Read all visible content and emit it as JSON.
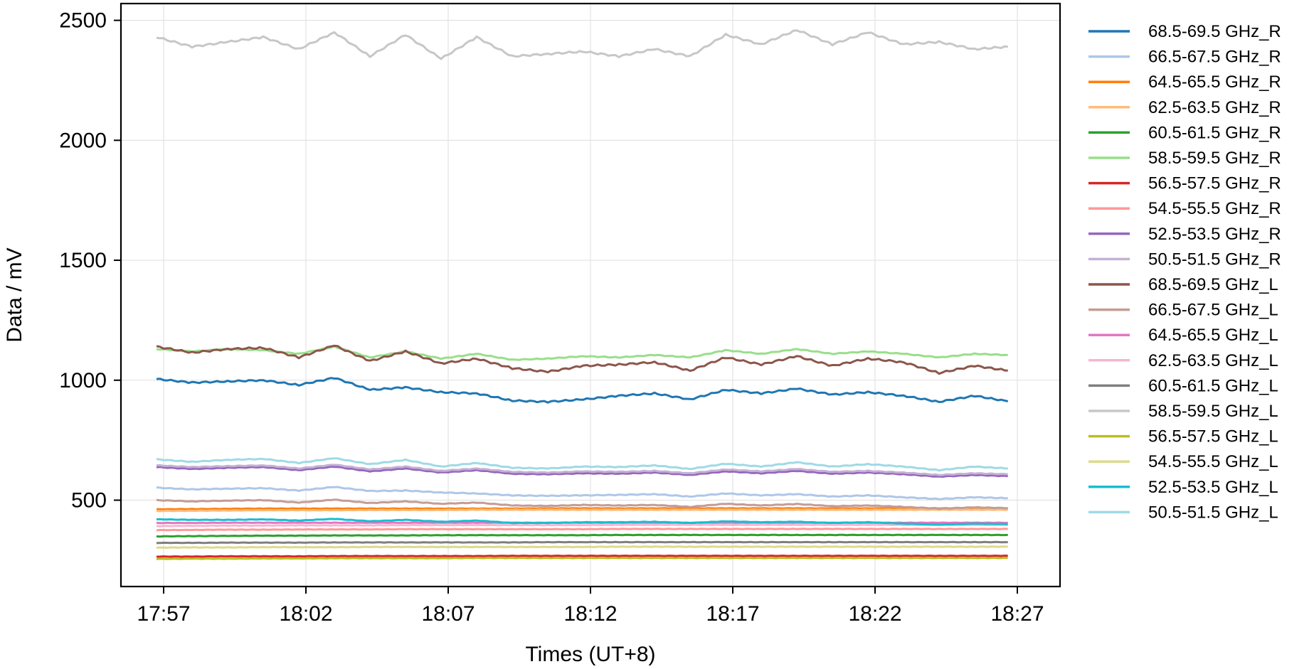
{
  "chart_data": {
    "type": "line",
    "title": "",
    "xlabel": "Times (UT+8)",
    "ylabel": "Data / mV",
    "xlim": [
      "17:55:30",
      "18:28:30"
    ],
    "ylim": [
      140,
      2570
    ],
    "x_ticks": [
      "17:57",
      "18:02",
      "18:07",
      "18:12",
      "18:17",
      "18:22",
      "18:27"
    ],
    "y_ticks": [
      500,
      1000,
      1500,
      2000,
      2500
    ],
    "grid": true,
    "legend_position": "outside-right",
    "x": [
      "17:56:45",
      "17:58:00",
      "17:59:15",
      "18:00:30",
      "18:01:45",
      "18:03:00",
      "18:04:15",
      "18:05:30",
      "18:06:45",
      "18:08:00",
      "18:09:15",
      "18:10:30",
      "18:11:45",
      "18:13:00",
      "18:14:15",
      "18:15:30",
      "18:16:45",
      "18:18:00",
      "18:19:15",
      "18:20:30",
      "18:21:45",
      "18:23:00",
      "18:24:15",
      "18:25:30",
      "18:26:40"
    ],
    "series": [
      {
        "name": "68.5-69.5 GHz_R",
        "color": "#1f77b4",
        "values": [
          1005,
          990,
          995,
          1000,
          980,
          1010,
          960,
          970,
          950,
          945,
          915,
          910,
          920,
          935,
          945,
          920,
          960,
          945,
          965,
          940,
          950,
          935,
          910,
          935,
          912
        ]
      },
      {
        "name": "66.5-67.5 GHz_R",
        "color": "#aec7e8",
        "values": [
          552,
          545,
          548,
          550,
          540,
          555,
          538,
          540,
          532,
          528,
          520,
          518,
          520,
          522,
          525,
          515,
          528,
          520,
          525,
          515,
          520,
          512,
          505,
          512,
          508
        ]
      },
      {
        "name": "64.5-65.5 GHz_R",
        "color": "#ff7f0e",
        "values": [
          462,
          463,
          464,
          465,
          465,
          465,
          465,
          465,
          465,
          465,
          465,
          466,
          466,
          466,
          466,
          466,
          466,
          466,
          466,
          466,
          466,
          466,
          466,
          466,
          465
        ]
      },
      {
        "name": "62.5-63.5 GHz_R",
        "color": "#ffbb78",
        "values": [
          455,
          456,
          457,
          458,
          458,
          458,
          459,
          459,
          459,
          460,
          460,
          460,
          460,
          460,
          460,
          460,
          460,
          460,
          460,
          460,
          460,
          460,
          460,
          460,
          460
        ]
      },
      {
        "name": "60.5-61.5 GHz_R",
        "color": "#2ca02c",
        "values": [
          349,
          350,
          351,
          352,
          352,
          353,
          353,
          353,
          354,
          354,
          354,
          354,
          354,
          355,
          355,
          355,
          355,
          355,
          355,
          355,
          355,
          355,
          355,
          355,
          355
        ]
      },
      {
        "name": "58.5-59.5 GHz_R",
        "color": "#98df8a",
        "values": [
          1130,
          1120,
          1130,
          1125,
          1110,
          1140,
          1095,
          1120,
          1090,
          1110,
          1085,
          1090,
          1100,
          1095,
          1105,
          1095,
          1125,
          1110,
          1130,
          1110,
          1120,
          1110,
          1095,
          1110,
          1105
        ]
      },
      {
        "name": "56.5-57.5 GHz_R",
        "color": "#d62728",
        "values": [
          265,
          265,
          266,
          266,
          266,
          267,
          267,
          267,
          267,
          267,
          268,
          268,
          268,
          268,
          268,
          268,
          268,
          268,
          268,
          268,
          268,
          268,
          268,
          268,
          268
        ]
      },
      {
        "name": "54.5-55.5 GHz_R",
        "color": "#ff9896",
        "values": [
          375,
          376,
          377,
          377,
          378,
          378,
          378,
          379,
          379,
          379,
          379,
          379,
          379,
          380,
          380,
          380,
          380,
          380,
          380,
          380,
          380,
          380,
          380,
          380,
          380
        ]
      },
      {
        "name": "52.5-53.5 GHz_R",
        "color": "#9467bd",
        "values": [
          638,
          630,
          635,
          638,
          625,
          640,
          620,
          632,
          615,
          625,
          610,
          608,
          612,
          610,
          615,
          605,
          620,
          612,
          622,
          610,
          615,
          608,
          598,
          605,
          600
        ]
      },
      {
        "name": "50.5-51.5 GHz_R",
        "color": "#c5b0d5",
        "values": [
          645,
          638,
          642,
          645,
          632,
          648,
          628,
          640,
          622,
          632,
          618,
          615,
          620,
          618,
          622,
          612,
          628,
          620,
          630,
          618,
          622,
          615,
          605,
          612,
          608
        ]
      },
      {
        "name": "68.5-69.5 GHz_L",
        "color": "#8c564b",
        "values": [
          1140,
          1115,
          1130,
          1135,
          1095,
          1145,
          1080,
          1120,
          1070,
          1090,
          1050,
          1035,
          1060,
          1065,
          1075,
          1040,
          1095,
          1065,
          1100,
          1060,
          1090,
          1075,
          1030,
          1060,
          1040
        ]
      },
      {
        "name": "66.5-67.5 GHz_L",
        "color": "#c49c94",
        "values": [
          500,
          495,
          498,
          500,
          490,
          502,
          488,
          495,
          485,
          490,
          478,
          476,
          480,
          478,
          480,
          472,
          485,
          478,
          484,
          475,
          478,
          472,
          465,
          470,
          467
        ]
      },
      {
        "name": "64.5-65.5 GHz_L",
        "color": "#e377c2",
        "values": [
          405,
          405,
          406,
          406,
          406,
          406,
          406,
          406,
          406,
          406,
          406,
          406,
          406,
          406,
          406,
          406,
          406,
          406,
          406,
          406,
          406,
          406,
          406,
          406,
          406
        ]
      },
      {
        "name": "62.5-63.5 GHz_L",
        "color": "#f7b6d2",
        "values": [
          392,
          393,
          394,
          394,
          395,
          395,
          395,
          396,
          396,
          396,
          396,
          396,
          396,
          397,
          397,
          397,
          397,
          397,
          397,
          397,
          397,
          397,
          397,
          397,
          397
        ]
      },
      {
        "name": "60.5-61.5 GHz_L",
        "color": "#7f7f7f",
        "values": [
          322,
          322,
          323,
          323,
          323,
          324,
          324,
          324,
          324,
          324,
          324,
          325,
          325,
          325,
          325,
          325,
          325,
          325,
          325,
          325,
          325,
          325,
          325,
          325,
          325
        ]
      },
      {
        "name": "58.5-59.5 GHz_L",
        "color": "#c7c7c7",
        "values": [
          2430,
          2390,
          2410,
          2430,
          2380,
          2450,
          2350,
          2440,
          2340,
          2430,
          2350,
          2360,
          2370,
          2350,
          2380,
          2350,
          2440,
          2400,
          2460,
          2400,
          2450,
          2400,
          2410,
          2380,
          2390
        ]
      },
      {
        "name": "56.5-57.5 GHz_L",
        "color": "#bcbd22",
        "values": [
          255,
          256,
          256,
          257,
          257,
          258,
          258,
          258,
          258,
          259,
          259,
          259,
          259,
          259,
          259,
          259,
          259,
          259,
          259,
          259,
          259,
          259,
          259,
          259,
          259
        ]
      },
      {
        "name": "54.5-55.5 GHz_L",
        "color": "#dbdb8d",
        "values": [
          302,
          303,
          303,
          304,
          304,
          304,
          305,
          305,
          305,
          305,
          305,
          305,
          305,
          306,
          306,
          306,
          306,
          306,
          306,
          306,
          306,
          306,
          306,
          306,
          306
        ]
      },
      {
        "name": "52.5-53.5 GHz_L",
        "color": "#17becf",
        "values": [
          420,
          418,
          418,
          420,
          415,
          422,
          412,
          418,
          410,
          415,
          405,
          405,
          408,
          408,
          410,
          405,
          412,
          408,
          410,
          405,
          408,
          402,
          398,
          402,
          400
        ]
      },
      {
        "name": "50.5-51.5 GHz_L",
        "color": "#9edae5",
        "values": [
          670,
          660,
          668,
          672,
          655,
          675,
          650,
          668,
          640,
          655,
          635,
          632,
          640,
          638,
          645,
          630,
          652,
          640,
          658,
          640,
          650,
          640,
          625,
          640,
          632
        ]
      }
    ]
  }
}
